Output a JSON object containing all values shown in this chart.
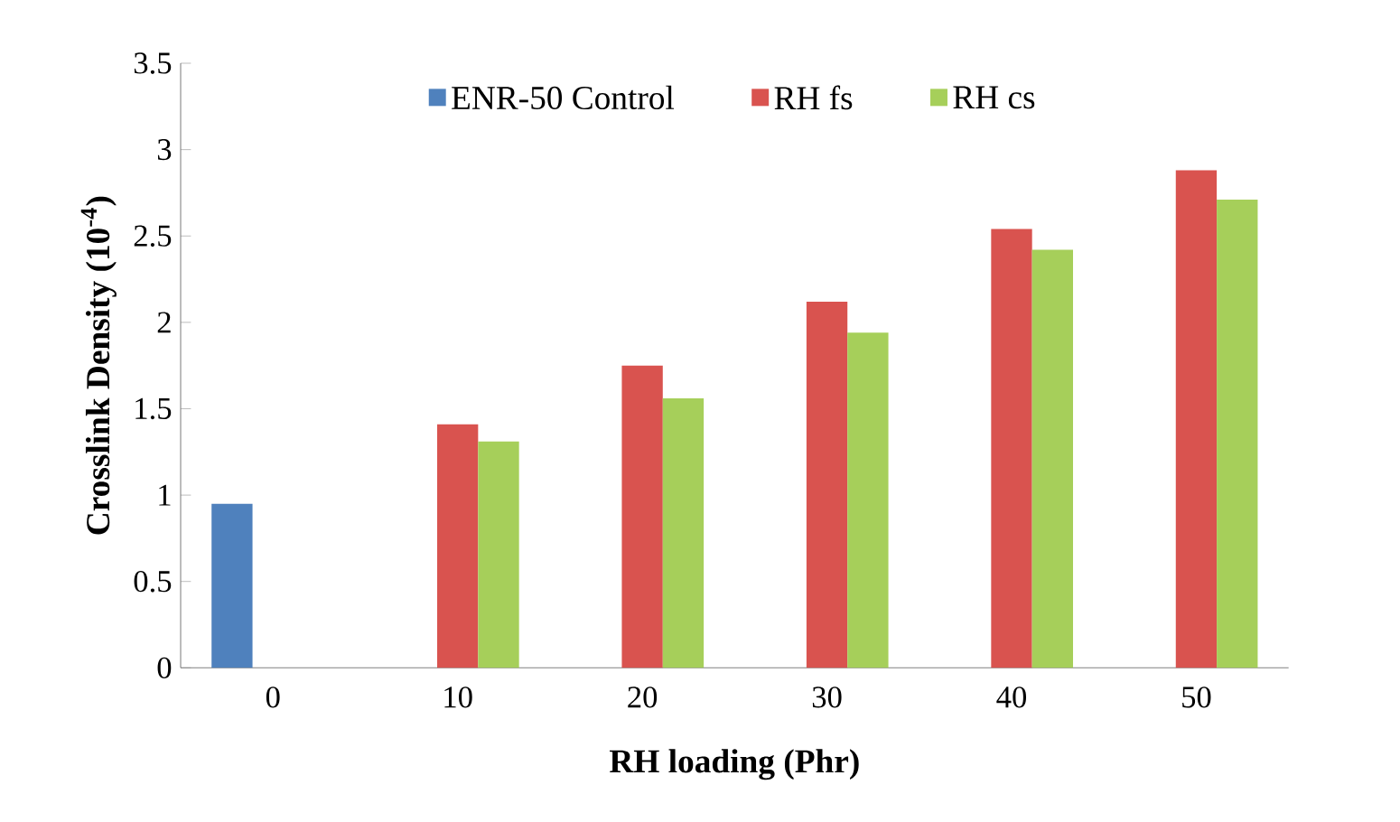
{
  "chart_data": {
    "type": "bar",
    "xlabel": "RH loading (Phr)",
    "ylabel": "Crosslink Density (10$^{-4}$)",
    "categories": [
      "0",
      "10",
      "20",
      "30",
      "40",
      "50"
    ],
    "series": [
      {
        "name": "ENR-50 Control",
        "color": "#4f81bd",
        "values": [
          0.95,
          null,
          null,
          null,
          null,
          null
        ]
      },
      {
        "name": "RH fs",
        "color": "#d9534f",
        "values": [
          null,
          1.41,
          1.75,
          2.12,
          2.54,
          2.88
        ]
      },
      {
        "name": "RH cs",
        "color": "#a6cf5a",
        "values": [
          null,
          1.31,
          1.56,
          1.94,
          2.42,
          2.71
        ]
      }
    ],
    "ylim": [
      0,
      3.5
    ],
    "yticks": [
      0,
      0.5,
      1,
      1.5,
      2,
      2.5,
      3,
      3.5
    ],
    "grid": false,
    "legend": "top"
  }
}
